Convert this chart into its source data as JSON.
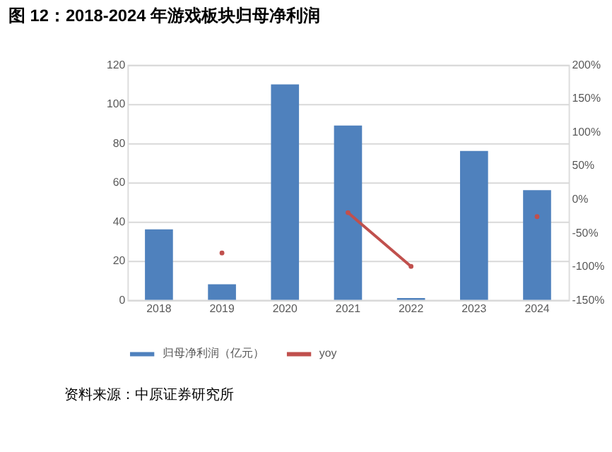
{
  "chart_data": {
    "type": "bar",
    "title": "图 12：2018-2024 年游戏板块归母净利润",
    "categories": [
      "2018",
      "2019",
      "2020",
      "2021",
      "2022",
      "2023",
      "2024"
    ],
    "series": [
      {
        "name": "归母净利润（亿元）",
        "color": "#4f81bd",
        "values": [
          36,
          8,
          110,
          89,
          1,
          76,
          56
        ]
      },
      {
        "name": "yoy",
        "color": "#c0504d",
        "type": "line",
        "axis": "y2",
        "marker": "circle",
        "values": [
          null,
          -80,
          null,
          -20,
          -100,
          null,
          -26
        ]
      }
    ],
    "ylim": [
      0,
      120
    ],
    "yticks": [
      0,
      20,
      40,
      60,
      80,
      100,
      120
    ],
    "y2lim": [
      -150,
      200
    ],
    "y2ticks": [
      {
        "value": -150,
        "label": "-150%"
      },
      {
        "value": -100,
        "label": "-100%"
      },
      {
        "value": -50,
        "label": "-50%"
      },
      {
        "value": 0,
        "label": "0%"
      },
      {
        "value": 50,
        "label": "50%"
      },
      {
        "value": 100,
        "label": "100%"
      },
      {
        "value": 150,
        "label": "150%"
      },
      {
        "value": 200,
        "label": "200%"
      }
    ],
    "grid": "y",
    "legend": "bottom",
    "annotations": [
      "资料来源：中原证券研究所"
    ]
  }
}
